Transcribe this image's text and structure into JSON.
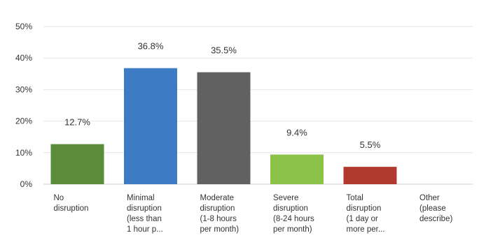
{
  "chart_data": {
    "type": "bar",
    "categories": [
      [
        "No",
        "disruption"
      ],
      [
        "Minimal",
        "disruption",
        "(less than",
        "1 hour p..."
      ],
      [
        "Moderate",
        "disruption",
        "(1-8 hours",
        "per month)"
      ],
      [
        "Severe",
        "disruption",
        "(8-24 hours",
        "per month)"
      ],
      [
        "Total",
        "disruption",
        "(1 day or",
        "more per..."
      ],
      [
        "Other",
        "(please",
        "describe)"
      ]
    ],
    "values": [
      12.7,
      36.8,
      35.5,
      9.4,
      5.5,
      null
    ],
    "data_labels": [
      "12.7%",
      "36.8%",
      "35.5%",
      "9.4%",
      "5.5%",
      ""
    ],
    "colors": [
      "#5b8c3a",
      "#3d7cc4",
      "#616161",
      "#8bc34a",
      "#b03a2e",
      "#cccccc"
    ],
    "ylim": [
      0,
      50
    ],
    "yticks": [
      0,
      10,
      20,
      30,
      40,
      50
    ],
    "ytick_labels": [
      "0%",
      "10%",
      "20%",
      "30%",
      "40%",
      "50%"
    ],
    "grid": true,
    "title": "",
    "xlabel": "",
    "ylabel": ""
  }
}
